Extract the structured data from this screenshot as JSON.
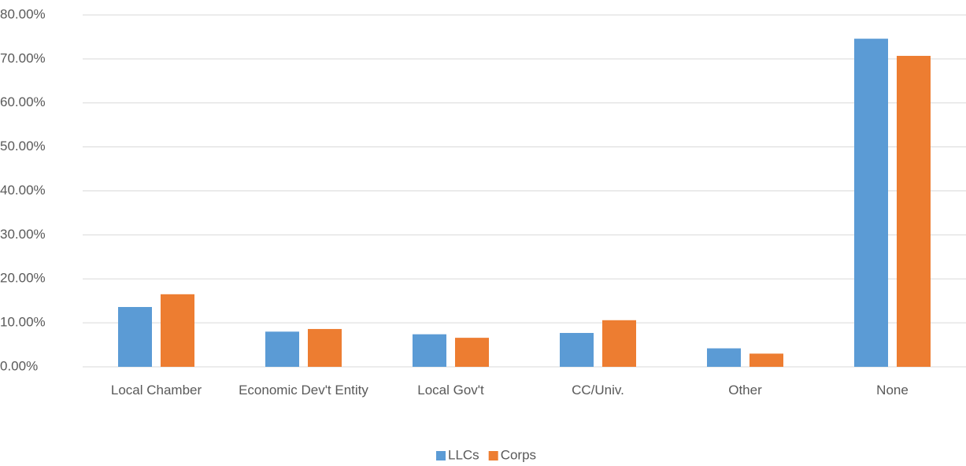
{
  "chart_data": {
    "type": "bar",
    "categories": [
      "Local Chamber",
      "Economic Dev't Entity",
      "Local Gov't",
      "CC/Univ.",
      "Other",
      "None"
    ],
    "series": [
      {
        "name": "LLCs",
        "color": "#5b9bd5",
        "values": [
          13.6,
          8.0,
          7.4,
          7.7,
          4.2,
          74.6
        ]
      },
      {
        "name": "Corps",
        "color": "#ed7d31",
        "values": [
          16.5,
          8.6,
          6.6,
          10.6,
          3.0,
          70.7
        ]
      }
    ],
    "ylim": [
      0,
      80
    ],
    "yticks": [
      {
        "value": 0,
        "label": "0.00%"
      },
      {
        "value": 10,
        "label": "10.00%"
      },
      {
        "value": 20,
        "label": "20.00%"
      },
      {
        "value": 30,
        "label": "30.00%"
      },
      {
        "value": 40,
        "label": "40.00%"
      },
      {
        "value": 50,
        "label": "50.00%"
      },
      {
        "value": 60,
        "label": "60.00%"
      },
      {
        "value": 70,
        "label": "70.00%"
      },
      {
        "value": 80,
        "label": "80.00%"
      }
    ],
    "grid": true,
    "legend": "bottom"
  }
}
